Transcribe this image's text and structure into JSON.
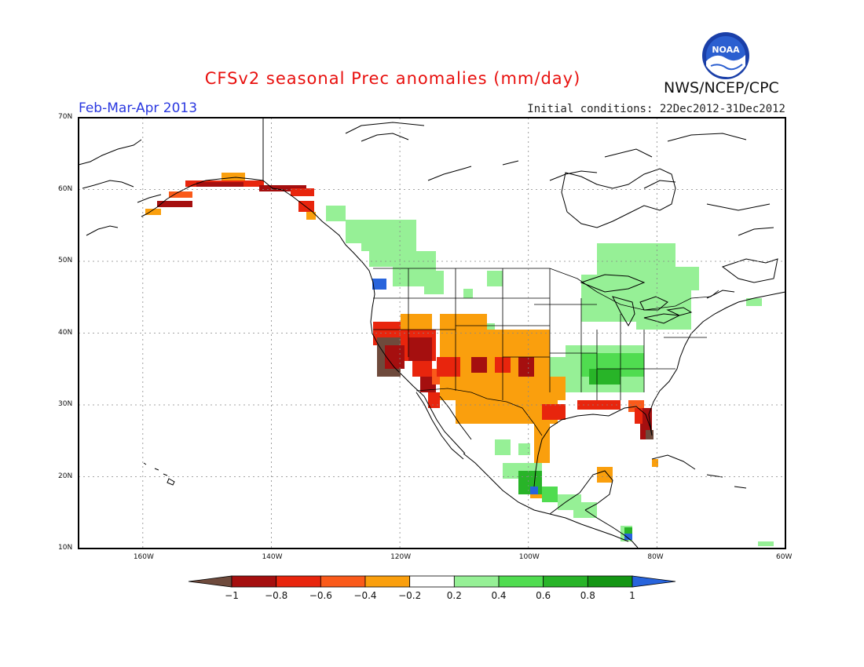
{
  "title": "CFSv2 seasonal Prec anomalies (mm/day)",
  "period": "Feb-Mar-Apr 2013",
  "initial_conditions": "Initial conditions: 22Dec2012-31Dec2012",
  "agency": "NWS/NCEP/CPC",
  "logo_text": "NOAA",
  "map": {
    "lat_labels": [
      "70N",
      "60N",
      "50N",
      "40N",
      "30N",
      "20N",
      "10N"
    ],
    "lon_labels": [
      "160W",
      "140W",
      "120W",
      "100W",
      "80W",
      "60W"
    ],
    "lat_range": [
      10,
      70
    ],
    "lon_range": [
      -170,
      -60
    ]
  },
  "colorbar": {
    "labels": [
      "-1",
      "-0.8",
      "-0.6",
      "-0.4",
      "-0.2",
      "0.2",
      "0.4",
      "0.6",
      "0.8",
      "1"
    ],
    "colors": [
      "#6e4a3c",
      "#a50f0f",
      "#e8250d",
      "#fa5a1a",
      "#fa9f0d",
      "#ffffff",
      "#96f096",
      "#50dc50",
      "#28b428",
      "#149614",
      "#2864dc"
    ]
  }
}
